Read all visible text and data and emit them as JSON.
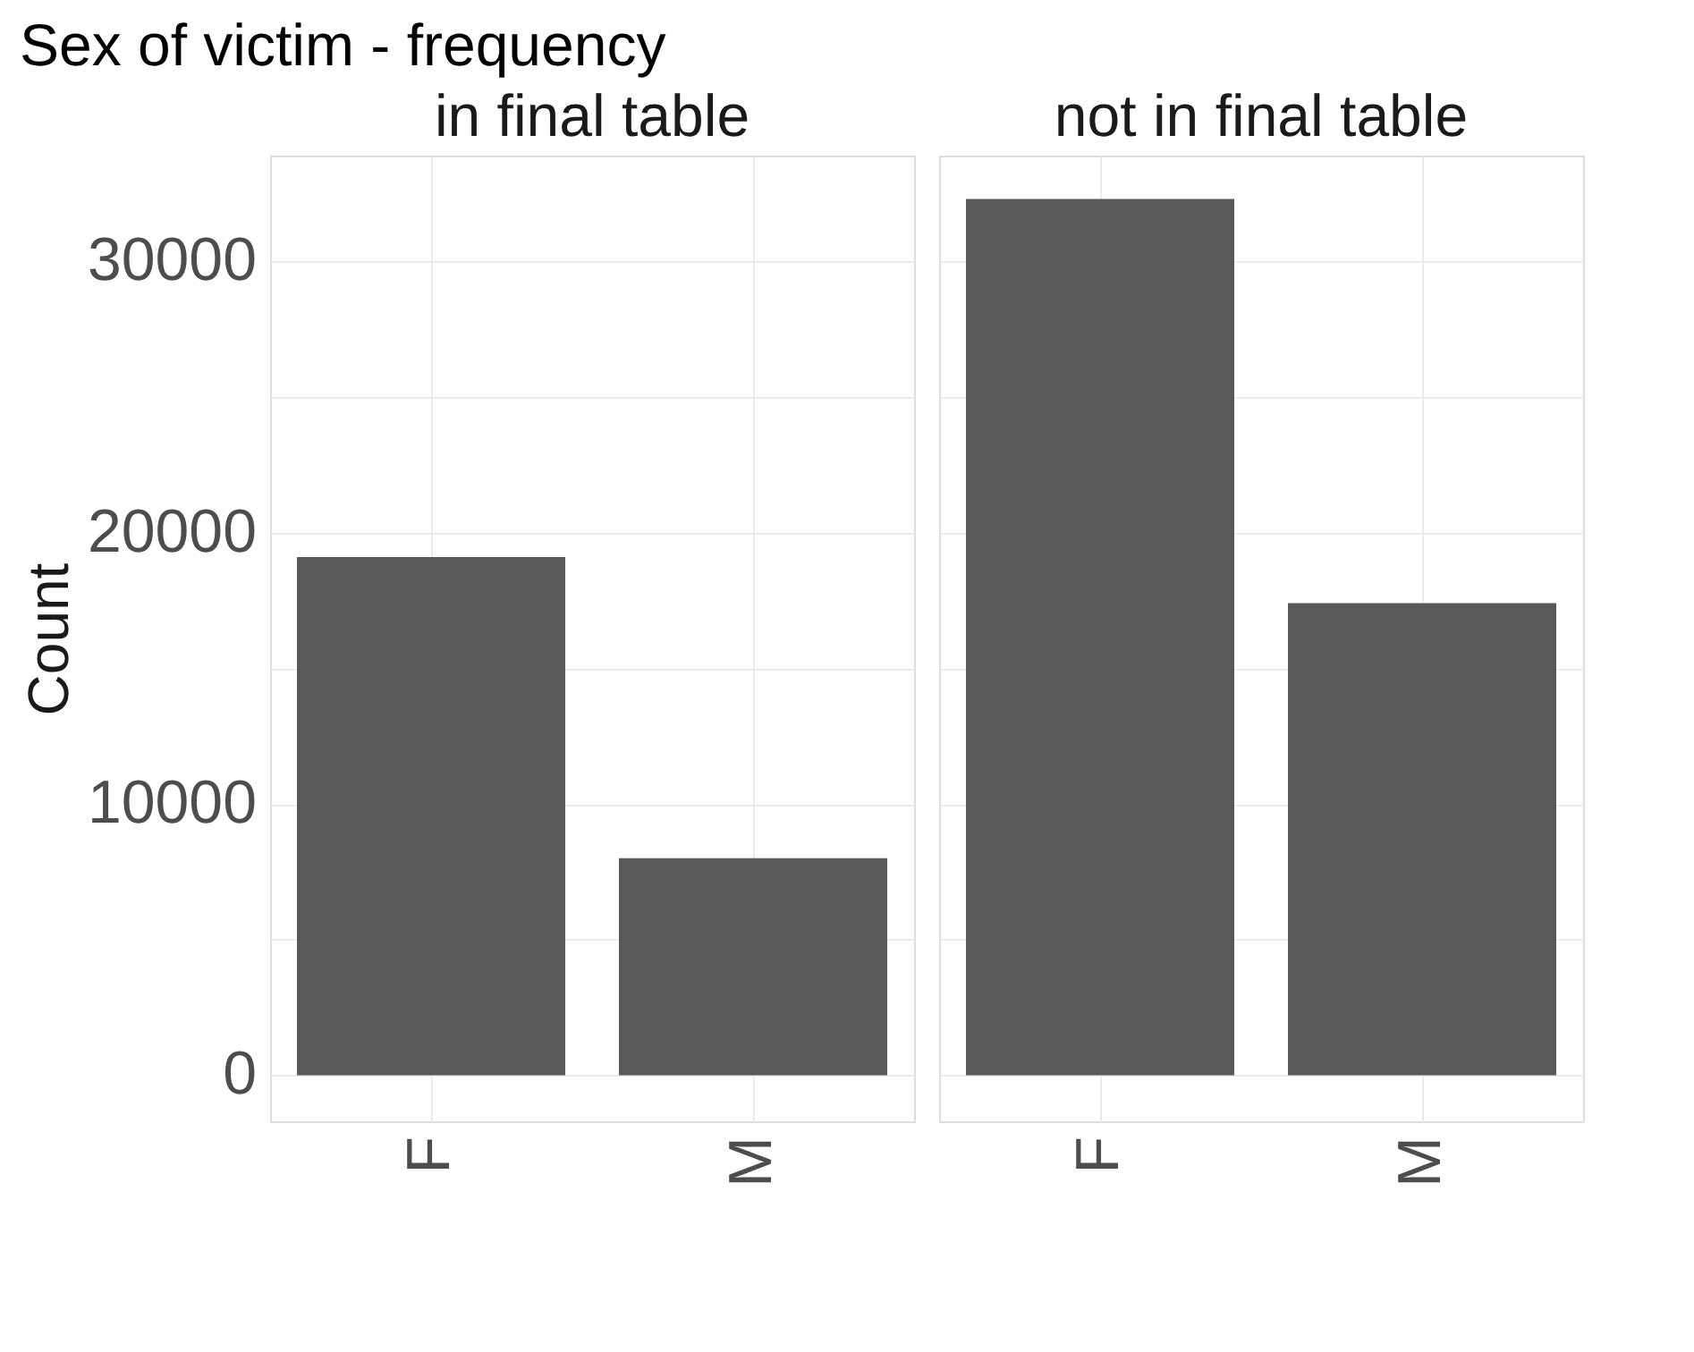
{
  "chart_data": [
    {
      "type": "bar",
      "title": "Sex of victim - frequency",
      "subtitle": "in final table",
      "ylabel": "Count",
      "categories": [
        "F",
        "M"
      ],
      "values": [
        19100,
        8000
      ],
      "color": "#595959",
      "ylim": [
        -1700,
        33900
      ],
      "yticks": [
        0,
        {
          "value": 5000,
          "label": null
        },
        10000,
        {
          "value": 15000,
          "label": null
        },
        20000,
        {
          "value": 25000,
          "label": null
        },
        30000
      ],
      "grid": true
    },
    {
      "type": "bar",
      "subtitle": "not in final table",
      "categories": [
        "F",
        "M"
      ],
      "values": [
        32300,
        17400
      ],
      "color": "#595959",
      "ylim": [
        -1700,
        33900
      ],
      "yticks": [
        0,
        {
          "value": 5000,
          "label": null
        },
        10000,
        {
          "value": 15000,
          "label": null
        },
        20000,
        {
          "value": 25000,
          "label": null
        },
        30000
      ],
      "grid": true,
      "tick_labels": "x"
    }
  ]
}
